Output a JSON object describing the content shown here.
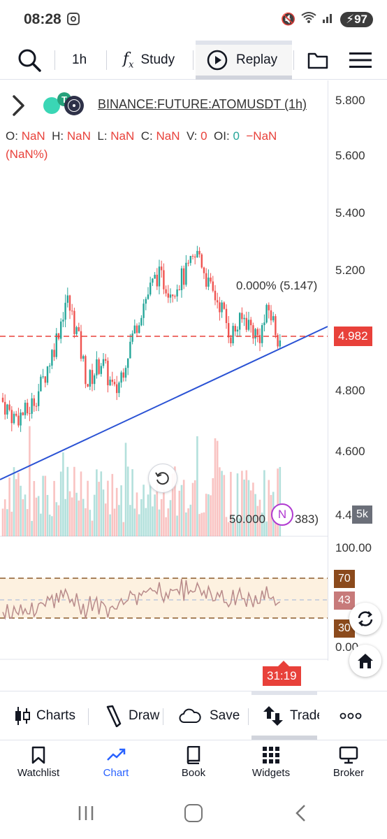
{
  "status_bar": {
    "time": "08:28",
    "battery": "97"
  },
  "toolbar": {
    "interval": "1h",
    "study_label": "Study",
    "replay_label": "Replay"
  },
  "legend": {
    "symbol": "BINANCE:FUTURE:ATOMUSDT (1h)",
    "o_label": "O:",
    "o_val": "NaN",
    "h_label": "H:",
    "h_val": "NaN",
    "l_label": "L:",
    "l_val": "NaN",
    "c_label": "C:",
    "c_val": "NaN",
    "v_label": "V:",
    "v_val": "0",
    "oi_label": "OI:",
    "oi_val": "0",
    "chg": "−NaN",
    "chg_pct": "(NaN%)"
  },
  "price_scale": {
    "ticks": [
      "5.800",
      "5.600",
      "5.400",
      "5.200",
      "4.800",
      "4.600",
      "4.400"
    ],
    "current_price": "4.982",
    "volume_tag": "5k",
    "countdown": "31:19"
  },
  "fib": {
    "top_label": "0.000% (5.147)",
    "mid_label_a": "50.000",
    "mid_label_b": "383)",
    "n_badge": "N"
  },
  "rsi_scale": {
    "top": "100.00",
    "upper": "70.00",
    "current": "43.00",
    "lower": "30.00",
    "bottom": "0.00",
    "upper_short": "70",
    "current_short": "43",
    "lower_short": "30"
  },
  "bottom_toolbar": {
    "charts_label": "Charts",
    "draw_label": "Draw",
    "save_label": "Save",
    "trade_label": "Trade"
  },
  "nav": {
    "watchlist": "Watchlist",
    "chart": "Chart",
    "book": "Book",
    "widgets": "Widgets",
    "broker": "Broker"
  },
  "colors": {
    "up": "#26a69a",
    "down": "#ef5350",
    "accent": "#2962ff",
    "price_line": "#e8413a",
    "rsi_band": "#fdf1e0",
    "rsi_band_border": "#8b5a2b"
  }
}
